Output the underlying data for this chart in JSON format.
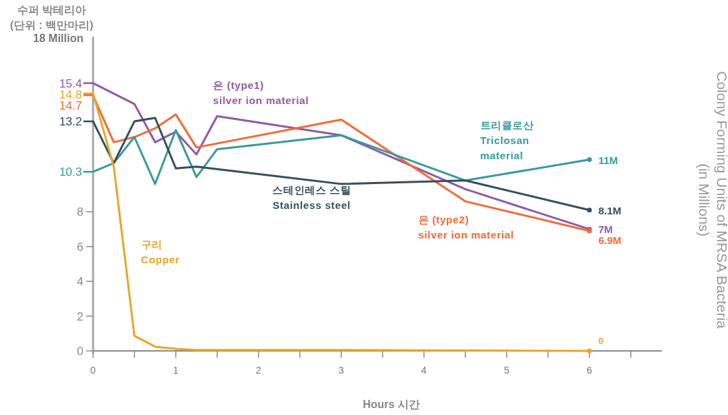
{
  "chart_data": {
    "type": "line",
    "xlabel": "Hours 시간",
    "ylabel": "수퍼 박테리아\n(단위 : 백만마리)",
    "y2label": "Colony Forming Units of MRSA Bacteria\n(in Millions)",
    "xlim": [
      0,
      6.875
    ],
    "ylim": [
      0,
      18
    ],
    "xticks": [
      0,
      {
        "value": 0.5,
        "label": null
      },
      1,
      {
        "value": 1.5,
        "label": null
      },
      2,
      {
        "value": 2.5,
        "label": null
      },
      3,
      {
        "value": 3.5,
        "label": null
      },
      4,
      {
        "value": 4.5,
        "label": null
      },
      5,
      {
        "value": 5.5,
        "label": null
      },
      6,
      {
        "value": 6.5,
        "label": null
      }
    ],
    "yticks": [
      0,
      2,
      4,
      6,
      8,
      {
        "value": 18,
        "label": "18 Million"
      }
    ],
    "grid": false,
    "line_style": "solid",
    "series": [
      {
        "name": "은 (type1)\nsilver ion material",
        "color": "#8e5ba6",
        "x": [
          0,
          0.5,
          0.75,
          1,
          1.25,
          1.5,
          3,
          4.5,
          6
        ],
        "values": [
          15.4,
          14.2,
          12.0,
          12.6,
          11.3,
          13.5,
          12.4,
          9.3,
          7.0
        ],
        "value_labels": [
          "15.4",
          null,
          null,
          null,
          null,
          null,
          null,
          null,
          "7M"
        ]
      },
      {
        "name": "은 (type2)\nsilver ion material",
        "color": "#f26b3a",
        "x": [
          0,
          0.25,
          0.5,
          0.75,
          1,
          1.25,
          3,
          4.5,
          6
        ],
        "values": [
          14.7,
          12.0,
          12.3,
          12.8,
          13.6,
          11.7,
          13.3,
          8.6,
          6.9
        ],
        "value_labels": [
          "14.7",
          null,
          null,
          null,
          null,
          null,
          null,
          null,
          "6.9M"
        ]
      },
      {
        "name": "트리클로산\nTriclosan\nmaterial",
        "color": "#3a9a9c",
        "x": [
          0,
          0.25,
          0.5,
          0.75,
          1,
          1.25,
          1.5,
          3,
          4.5,
          6
        ],
        "values": [
          10.3,
          10.8,
          12.3,
          9.6,
          12.7,
          10.0,
          11.6,
          12.4,
          9.8,
          11.0
        ],
        "value_labels": [
          "10.3",
          null,
          null,
          null,
          null,
          null,
          null,
          null,
          null,
          "11M"
        ]
      },
      {
        "name": "스테인레스 스틸\nStainless steel",
        "color": "#35505c",
        "x": [
          0,
          0.25,
          0.5,
          0.75,
          1,
          1.25,
          3,
          4.5,
          6
        ],
        "values": [
          13.2,
          10.8,
          13.2,
          13.4,
          10.5,
          10.6,
          9.6,
          9.8,
          8.1
        ],
        "value_labels": [
          "13.2",
          null,
          null,
          null,
          null,
          null,
          null,
          null,
          "8.1M"
        ]
      },
      {
        "name": "구리\nCopper",
        "color": "#e8a628",
        "x": [
          0,
          0.25,
          0.5,
          0.75,
          1,
          1.25,
          3,
          6
        ],
        "values": [
          14.8,
          10.6,
          0.87,
          0.24,
          0.12,
          0.05,
          0.05,
          0
        ],
        "value_labels": [
          "14.8",
          null,
          null,
          null,
          null,
          null,
          null,
          "0"
        ]
      }
    ]
  }
}
